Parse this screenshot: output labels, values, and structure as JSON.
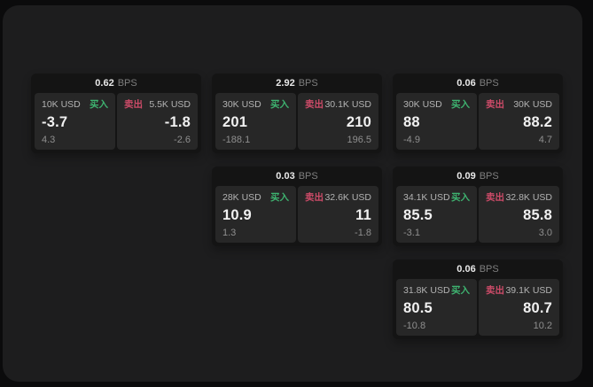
{
  "labels": {
    "bps_unit": "BPS",
    "buy": "买入",
    "sell": "卖出"
  },
  "colors": {
    "outer_background": "#0b0b0c",
    "window_background": "#1d1d1e",
    "card_background": "#141414",
    "tile_background": "#272727",
    "buy_green": "#3eb370",
    "sell_red": "#cc4b68",
    "primary_text": "#f1f1f1",
    "secondary_text": "#8f8f8f"
  },
  "cards": [
    {
      "bps": "0.62",
      "buy": {
        "amount": "10K USD",
        "value": "-3.7",
        "delta": "4.3"
      },
      "sell": {
        "amount": "5.5K USD",
        "value": "-1.8",
        "delta": "-2.6"
      }
    },
    {
      "bps": "2.92",
      "buy": {
        "amount": "30K USD",
        "value": "201",
        "delta": "-188.1"
      },
      "sell": {
        "amount": "30.1K USD",
        "value": "210",
        "delta": "196.5"
      }
    },
    {
      "bps": "0.06",
      "buy": {
        "amount": "30K USD",
        "value": "88",
        "delta": "-4.9"
      },
      "sell": {
        "amount": "30K USD",
        "value": "88.2",
        "delta": "4.7"
      }
    },
    {
      "bps": "0.03",
      "buy": {
        "amount": "28K USD",
        "value": "10.9",
        "delta": "1.3"
      },
      "sell": {
        "amount": "32.6K USD",
        "value": "11",
        "delta": "-1.8"
      }
    },
    {
      "bps": "0.09",
      "buy": {
        "amount": "34.1K USD",
        "value": "85.5",
        "delta": "-3.1"
      },
      "sell": {
        "amount": "32.8K USD",
        "value": "85.8",
        "delta": "3.0"
      }
    },
    {
      "bps": "0.06",
      "buy": {
        "amount": "31.8K USD",
        "value": "80.5",
        "delta": "-10.8"
      },
      "sell": {
        "amount": "39.1K USD",
        "value": "80.7",
        "delta": "10.2"
      }
    }
  ]
}
